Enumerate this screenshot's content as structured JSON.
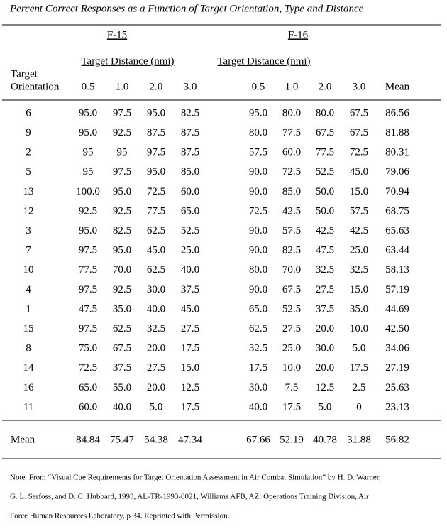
{
  "title": "Percent Correct Responses as a Function of Target Orientation, Type and Distance",
  "table": {
    "groups": [
      {
        "label": "F-15",
        "subheader": "Target Distance (nmi)"
      },
      {
        "label": "F-16",
        "subheader": "Target Distance (nmi)"
      }
    ],
    "stub_header": [
      "Target",
      "Orientation"
    ],
    "columns": [
      "0.5",
      "1.0",
      "2.0",
      "3.0",
      "0.5",
      "1.0",
      "2.0",
      "3.0",
      "Mean"
    ],
    "rows": [
      [
        "6",
        "95.0",
        "97.5",
        "95.0",
        "82.5",
        "95.0",
        "80.0",
        "80.0",
        "67.5",
        "86.56"
      ],
      [
        "9",
        "95.0",
        "92.5",
        "87.5",
        "87.5",
        "80.0",
        "77.5",
        "67.5",
        "67.5",
        "81.88"
      ],
      [
        "2",
        "95",
        "95",
        "97.5",
        "87.5",
        "57.5",
        "60.0",
        "77.5",
        "72.5",
        "80.31"
      ],
      [
        "5",
        "95",
        "97.5",
        "95.0",
        "85.0",
        "90.0",
        "72.5",
        "52.5",
        "45.0",
        "79.06"
      ],
      [
        "13",
        "100.0",
        "95.0",
        "72.5",
        "60.0",
        "90.0",
        "85.0",
        "50.0",
        "15.0",
        "70.94"
      ],
      [
        "12",
        "92.5",
        "92.5",
        "77.5",
        "65.0",
        "72.5",
        "42.5",
        "50.0",
        "57.5",
        "68.75"
      ],
      [
        "3",
        "95.0",
        "82.5",
        "62.5",
        "52.5",
        "90.0",
        "57.5",
        "42.5",
        "42.5",
        "65.63"
      ],
      [
        "7",
        "97.5",
        "95.0",
        "45.0",
        "25.0",
        "90.0",
        "82.5",
        "47.5",
        "25.0",
        "63.44"
      ],
      [
        "10",
        "77.5",
        "70.0",
        "62.5",
        "40.0",
        "80.0",
        "70.0",
        "32.5",
        "32.5",
        "58.13"
      ],
      [
        "4",
        "97.5",
        "92.5",
        "30.0",
        "37.5",
        "90.0",
        "67.5",
        "27.5",
        "15.0",
        "57.19"
      ],
      [
        "1",
        "47.5",
        "35.0",
        "40.0",
        "45.0",
        "65.0",
        "52.5",
        "37.5",
        "35.0",
        "44.69"
      ],
      [
        "15",
        "97.5",
        "62.5",
        "32.5",
        "27.5",
        "62.5",
        "27.5",
        "20.0",
        "10.0",
        "42.50"
      ],
      [
        "8",
        "75.0",
        "67.5",
        "20.0",
        "17.5",
        "32.5",
        "25.0",
        "30.0",
        "5.0",
        "34.06"
      ],
      [
        "14",
        "72.5",
        "37.5",
        "27.5",
        "15.0",
        "17.5",
        "10.0",
        "20.0",
        "17.5",
        "27.19"
      ],
      [
        "16",
        "65.0",
        "55.0",
        "20.0",
        "12.5",
        "30.0",
        "7.5",
        "12.5",
        "2.5",
        "25.63"
      ],
      [
        "11",
        "60.0",
        "40.0",
        "5.0",
        "17.5",
        "40.0",
        "17.5",
        "5.0",
        "0",
        "23.13"
      ]
    ],
    "mean_row": [
      "Mean",
      "84.84",
      "75.47",
      "54.38",
      "47.34",
      "67.66",
      "52.19",
      "40.78",
      "31.88",
      "56.82"
    ]
  },
  "note": [
    "Note. From “Visual Cue Requirements for Target Orientation Assessment in Air Combat Simulation” by H. D. Warner,",
    "G. L. Serfoss, and D. C.  Hubbard, 1993, AL-TR-1993-0021, Williams AFB, AZ: Operations Training Division, Air",
    "Force Human Resources Laboratory, p 34.  Reprinted with Permission."
  ]
}
